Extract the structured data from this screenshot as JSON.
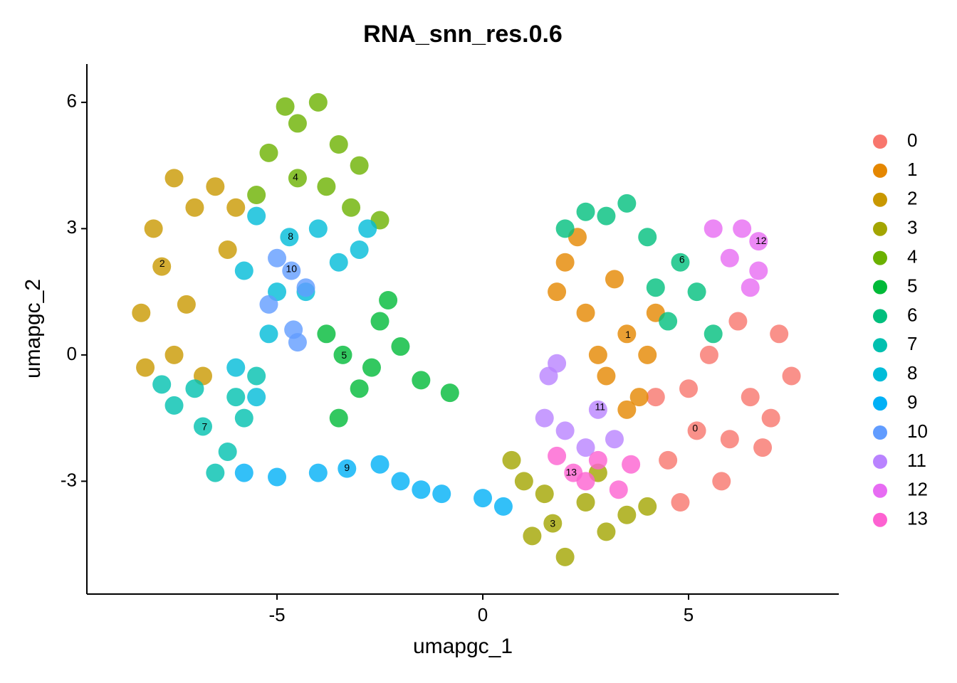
{
  "chart_data": {
    "type": "scatter",
    "title": "RNA_snn_res.0.6",
    "x_label": "umapgc_1",
    "y_label": "umapgc_2",
    "xlim": [
      -9.62,
      8.65
    ],
    "ylim": [
      -5.68,
      6.91
    ],
    "xticks": [
      -5,
      0,
      5
    ],
    "yticks": [
      -3,
      0,
      3,
      6
    ],
    "grid": false,
    "legend": "right",
    "series": [
      {
        "name": "0",
        "color": "#F8766D",
        "x": [
          5.2,
          6.5,
          7.2,
          4.5,
          5.8,
          6.8,
          4.2,
          5.5,
          6.2,
          7.5,
          4.8,
          6,
          5,
          7
        ],
        "y": [
          -1.8,
          -1,
          0.5,
          -2.5,
          -3,
          -2.2,
          -1,
          0,
          0.8,
          -0.5,
          -3.5,
          -2,
          -0.8,
          -1.5
        ]
      },
      {
        "name": "1",
        "color": "#E58700",
        "x": [
          3.5,
          2,
          2.5,
          3,
          4,
          3.2,
          1.8,
          2.8,
          3.8,
          4.2,
          2.3,
          3.5
        ],
        "y": [
          0.5,
          2.2,
          1,
          -0.5,
          0,
          1.8,
          1.5,
          0,
          -1,
          1,
          2.8,
          -1.3
        ]
      },
      {
        "name": "2",
        "color": "#C99800",
        "x": [
          -7.8,
          -7,
          -8.3,
          -7.5,
          -6.5,
          -8,
          -6.2,
          -7.2,
          -8.2,
          -6.8,
          -7.5,
          -6
        ],
        "y": [
          2.1,
          3.5,
          1,
          0,
          4,
          3,
          2.5,
          1.2,
          -0.3,
          -0.5,
          4.2,
          3.5
        ]
      },
      {
        "name": "3",
        "color": "#A3A500",
        "x": [
          1.7,
          2.5,
          1,
          3,
          2,
          3.5,
          0.7,
          1.5,
          4,
          2.8,
          1.2
        ],
        "y": [
          -4,
          -3.5,
          -3,
          -4.2,
          -4.8,
          -3.8,
          -2.5,
          -3.3,
          -3.6,
          -2.8,
          -4.3
        ]
      },
      {
        "name": "4",
        "color": "#6BB100",
        "x": [
          -4.5,
          -4.5,
          -3.5,
          -5.2,
          -4,
          -3,
          -5.5,
          -3.8,
          -4.8,
          -3.2,
          -2.5
        ],
        "y": [
          4.2,
          5.5,
          5,
          4.8,
          6,
          4.5,
          3.8,
          4,
          5.9,
          3.5,
          3.2
        ]
      },
      {
        "name": "5",
        "color": "#00BA38",
        "x": [
          -3.4,
          -2.5,
          -2.3,
          -3.8,
          -3,
          -2,
          -3.5,
          -1.5,
          -0.8,
          -2.7
        ],
        "y": [
          0,
          0.8,
          1.3,
          0.5,
          -0.8,
          0.2,
          -1.5,
          -0.6,
          -0.9,
          -0.3
        ]
      },
      {
        "name": "6",
        "color": "#00BF7D",
        "x": [
          4.8,
          3,
          2,
          4,
          5.2,
          3.5,
          4.5,
          5.6,
          2.5,
          4.2
        ],
        "y": [
          2.2,
          3.3,
          3,
          2.8,
          1.5,
          3.6,
          0.8,
          0.5,
          3.4,
          1.6
        ]
      },
      {
        "name": "7",
        "color": "#00C0AF",
        "x": [
          -6.8,
          -7.5,
          -6.2,
          -7,
          -5.8,
          -6.5,
          -7.8,
          -5.5,
          -6
        ],
        "y": [
          -1.7,
          -1.2,
          -2.3,
          -0.8,
          -1.5,
          -2.8,
          -0.7,
          -0.5,
          -1
        ]
      },
      {
        "name": "8",
        "color": "#00BCD8",
        "x": [
          -4.7,
          -5.5,
          -3.5,
          -5,
          -4,
          -3,
          -5.8,
          -5.2,
          -2.8,
          -4.3,
          -6,
          -5.5
        ],
        "y": [
          2.8,
          3.3,
          2.2,
          1.5,
          3,
          2.5,
          2,
          0.5,
          3,
          1.5,
          -0.3,
          -1
        ]
      },
      {
        "name": "9",
        "color": "#00B0F6",
        "x": [
          -3.3,
          -5,
          -4,
          -2,
          -1,
          0,
          -5.8,
          -2.5,
          -1.5,
          0.5
        ],
        "y": [
          -2.7,
          -2.9,
          -2.8,
          -3,
          -3.3,
          -3.4,
          -2.8,
          -2.6,
          -3.2,
          -3.6
        ]
      },
      {
        "name": "10",
        "color": "#619CFF",
        "x": [
          -4.65,
          -5,
          -4.3,
          -4.6,
          -5.2,
          -4.5
        ],
        "y": [
          2,
          2.3,
          1.6,
          0.6,
          1.2,
          0.3
        ]
      },
      {
        "name": "11",
        "color": "#B983FF",
        "x": [
          2.8,
          1.6,
          2,
          1.5,
          2.5,
          3.2,
          1.8
        ],
        "y": [
          -1.3,
          -0.5,
          -1.8,
          -1.5,
          -2.2,
          -2,
          -0.2
        ]
      },
      {
        "name": "12",
        "color": "#E76BF3",
        "x": [
          6.7,
          6.3,
          6,
          6.7,
          5.6,
          6.5
        ],
        "y": [
          2.7,
          3,
          2.3,
          2,
          3,
          1.6
        ]
      },
      {
        "name": "13",
        "color": "#FD61D1",
        "x": [
          2.2,
          2.8,
          1.8,
          2.5,
          3.3,
          3.6
        ],
        "y": [
          -2.8,
          -2.5,
          -2.4,
          -3,
          -3.2,
          -2.6
        ]
      }
    ],
    "labels": [
      {
        "text": "0",
        "x": 5.16,
        "y": -1.76
      },
      {
        "text": "1",
        "x": 3.53,
        "y": 0.47
      },
      {
        "text": "2",
        "x": -7.79,
        "y": 2.16
      },
      {
        "text": "3",
        "x": 1.7,
        "y": -4.02
      },
      {
        "text": "4",
        "x": -4.55,
        "y": 4.21
      },
      {
        "text": "5",
        "x": -3.37,
        "y": -0.02
      },
      {
        "text": "6",
        "x": 4.84,
        "y": 2.25
      },
      {
        "text": "7",
        "x": -6.76,
        "y": -1.72
      },
      {
        "text": "8",
        "x": -4.67,
        "y": 2.8
      },
      {
        "text": "9",
        "x": -3.3,
        "y": -2.69
      },
      {
        "text": "10",
        "x": -4.65,
        "y": 2.03
      },
      {
        "text": "11",
        "x": 2.85,
        "y": -1.25
      },
      {
        "text": "12",
        "x": 6.76,
        "y": 2.7
      },
      {
        "text": "13",
        "x": 2.15,
        "y": -2.8
      }
    ]
  }
}
